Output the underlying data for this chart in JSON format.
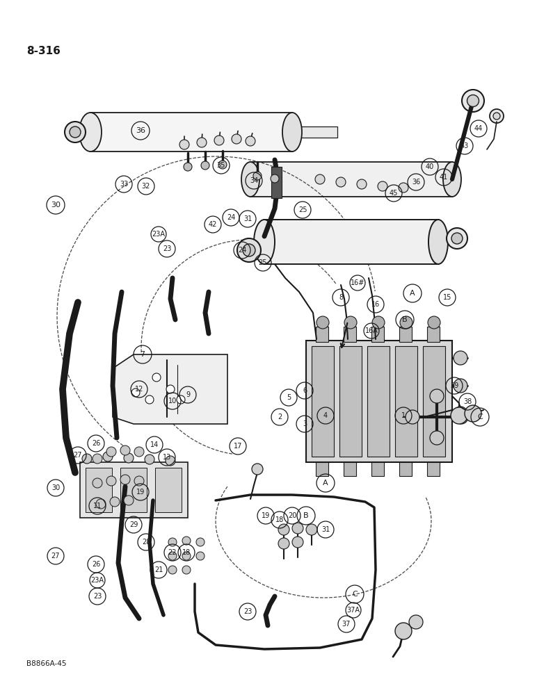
{
  "page_label": "8-316",
  "image_code": "B8866A-45",
  "background_color": "#ffffff",
  "line_color": "#1a1a1a",
  "figsize": [
    7.72,
    10.0
  ],
  "dpi": 100,
  "labels": {
    "page": "8-316",
    "image_ref": "B8866A-45"
  }
}
